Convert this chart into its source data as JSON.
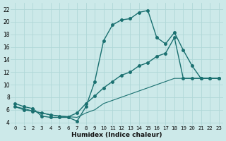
{
  "bg_color": "#cce9e9",
  "grid_color": "#b0d8d8",
  "line_color": "#1a7070",
  "xlabel": "Humidex (Indice chaleur)",
  "xlim": [
    -0.5,
    23.5
  ],
  "ylim": [
    3.5,
    23.0
  ],
  "xticks": [
    0,
    1,
    2,
    3,
    4,
    5,
    6,
    7,
    8,
    9,
    10,
    11,
    12,
    13,
    14,
    15,
    16,
    17,
    18,
    19,
    20,
    21,
    22,
    23
  ],
  "yticks": [
    4,
    6,
    8,
    10,
    12,
    14,
    16,
    18,
    20,
    22
  ],
  "series1_x": [
    0,
    1,
    2,
    3,
    4,
    5,
    6,
    7,
    8,
    9,
    10,
    11,
    12,
    13,
    14,
    15,
    16,
    17,
    18,
    19,
    20,
    21,
    22,
    23
  ],
  "series1_y": [
    7,
    6.5,
    6.2,
    5.0,
    4.8,
    4.8,
    4.8,
    4.2,
    6.5,
    10.5,
    17.0,
    19.5,
    20.3,
    20.5,
    21.5,
    21.8,
    17.5,
    16.5,
    18.3,
    15.5,
    13.0,
    11.0,
    11.0,
    11.0
  ],
  "series2_x": [
    0,
    1,
    2,
    3,
    4,
    5,
    6,
    7,
    8,
    9,
    10,
    11,
    12,
    13,
    14,
    15,
    16,
    17,
    18,
    19,
    20,
    21,
    22,
    23
  ],
  "series2_y": [
    6.5,
    6.0,
    5.8,
    5.5,
    5.2,
    5.0,
    4.9,
    5.5,
    7.0,
    8.2,
    9.5,
    10.5,
    11.5,
    12.0,
    13.0,
    13.5,
    14.5,
    15.0,
    17.5,
    11.0,
    11.0,
    11.0,
    11.0,
    11.0
  ],
  "series3_x": [
    0,
    1,
    2,
    3,
    4,
    5,
    6,
    7,
    8,
    9,
    10,
    11,
    12,
    13,
    14,
    15,
    16,
    17,
    18,
    19,
    20,
    21,
    22,
    23
  ],
  "series3_y": [
    6.5,
    6.2,
    5.8,
    5.5,
    5.2,
    5.0,
    4.9,
    4.8,
    5.5,
    6.0,
    7.0,
    7.5,
    8.0,
    8.5,
    9.0,
    9.5,
    10.0,
    10.5,
    11.0,
    11.0,
    11.0,
    11.0,
    11.0,
    11.0
  ]
}
